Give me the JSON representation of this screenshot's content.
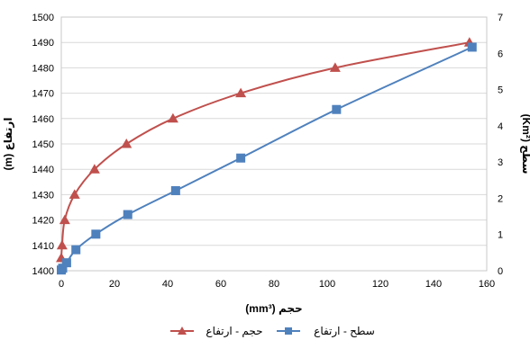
{
  "chart_data": {
    "type": "line",
    "xlabel": "حجم (mm³)",
    "ylabel_left": "ارتفاع (m)",
    "ylabel_right": "سطح (Km²)",
    "xlim": [
      0,
      160
    ],
    "xticks": [
      0,
      20,
      40,
      60,
      80,
      100,
      120,
      140,
      160
    ],
    "ylim_left": [
      1400,
      1500
    ],
    "yticks_left": [
      1400,
      1410,
      1420,
      1430,
      1440,
      1450,
      1460,
      1470,
      1480,
      1490,
      1500
    ],
    "ylim_right": [
      0,
      7
    ],
    "yticks_right": [
      0,
      1,
      2,
      3,
      4,
      5,
      6,
      7
    ],
    "grid": "horizontal",
    "legend_position": "bottom",
    "series": [
      {
        "name": "حجم - ارتفاع",
        "axis": "left",
        "color": "#c0504d",
        "marker": "triangle",
        "x": [
          0,
          0.3,
          1.3,
          5,
          12.5,
          24.5,
          42,
          67.5,
          103,
          153.5
        ],
        "y": [
          1405,
          1410,
          1420,
          1430,
          1440,
          1450,
          1460,
          1470,
          1480,
          1490
        ]
      },
      {
        "name": "سطح - ارتفاع",
        "axis": "right",
        "color": "#4f81bd",
        "marker": "square",
        "x": [
          0,
          0.5,
          2,
          5.5,
          13,
          25,
          43,
          67.5,
          103.5,
          154.5
        ],
        "y": [
          0.02,
          0.07,
          0.22,
          0.58,
          1.01,
          1.55,
          2.21,
          3.11,
          4.45,
          6.17
        ]
      }
    ]
  }
}
